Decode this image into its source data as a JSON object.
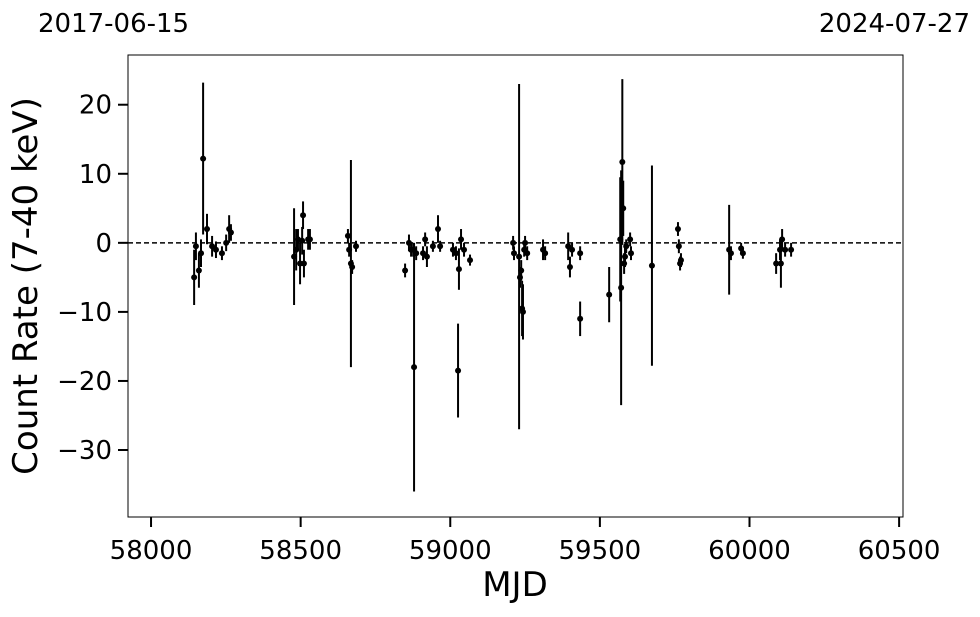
{
  "chart_data": {
    "type": "errorbar",
    "top_left_label": "2017-06-15",
    "top_right_label": "2024-07-27",
    "x_label": "MJD",
    "y_label": "Count Rate (7-40 keV)",
    "xlim": [
      57923,
      60513
    ],
    "ylim": [
      -39.7,
      27.2
    ],
    "xticks": [
      58000,
      58500,
      59000,
      59500,
      60000,
      60500
    ],
    "yticks": [
      {
        "value": -30,
        "label": "−30"
      },
      {
        "value": -20,
        "label": "−20"
      },
      {
        "value": -10,
        "label": "−10"
      },
      0,
      10,
      20
    ],
    "hline": 0,
    "series": [
      {
        "color": "#000000",
        "x": [
          58144,
          58150,
          58160,
          58167,
          58174,
          58187,
          58204,
          58217,
          58237,
          58251,
          58261,
          58267,
          58478,
          58485,
          58491,
          58498,
          58505,
          58508,
          58511,
          58525,
          58531,
          58658,
          58662,
          58668,
          58672,
          58685,
          58849,
          58862,
          58869,
          58876,
          58879,
          58886,
          58909,
          58916,
          58922,
          58942,
          58959,
          58966,
          59009,
          59019,
          59026,
          59029,
          59036,
          59046,
          59066,
          59210,
          59213,
          59230,
          59233,
          59237,
          59240,
          59243,
          59247,
          59250,
          59257,
          59310,
          59317,
          59394,
          59400,
          59407,
          59434,
          59434,
          59531,
          59568,
          59571,
          59575,
          59578,
          59581,
          59584,
          59588,
          59601,
          59604,
          59674,
          59761,
          59764,
          59768,
          59771,
          59932,
          59938,
          59972,
          59978,
          60089,
          60102,
          60105,
          60109,
          60119,
          60139
        ],
        "values": [
          -5,
          -0.5,
          -4,
          -1.5,
          12.2,
          2,
          -0.5,
          -1,
          -1.5,
          0,
          2,
          1.5,
          -2,
          -1,
          0.5,
          -3,
          0.3,
          4,
          -3,
          0.5,
          0.5,
          1,
          -1,
          -3,
          -3.5,
          -0.5,
          -4,
          0,
          -1,
          -1,
          -18,
          -1.5,
          -1.5,
          0.5,
          -2,
          -0.5,
          2,
          -0.5,
          -1,
          -1.5,
          -18.5,
          -3.8,
          0.5,
          -1,
          -2.5,
          0,
          -1.5,
          -2,
          -5,
          -4,
          -9.5,
          -10,
          -1,
          0,
          -1.5,
          -1,
          -1.5,
          -0.5,
          -3.5,
          -1,
          -11,
          -1.5,
          -7.5,
          0.5,
          -6.5,
          11.7,
          5,
          -3,
          -2,
          -0.5,
          0.5,
          -1.5,
          -3.3,
          2,
          -0.5,
          -3,
          -2.5,
          -1,
          -1.5,
          -0.8,
          -1.5,
          -3,
          -1,
          -3,
          0.5,
          -1,
          -1
        ],
        "errors": [
          4,
          2,
          2.5,
          2,
          11,
          2.2,
          1.5,
          1.2,
          1,
          1.2,
          2,
          1.2,
          7,
          3,
          1.5,
          3,
          2,
          2,
          2,
          1.5,
          1.5,
          1,
          1,
          15,
          1,
          0.8,
          1,
          1.2,
          1,
          1,
          18,
          1,
          1,
          1,
          1.5,
          0.8,
          2,
          0.8,
          1,
          1,
          6.8,
          3,
          1.5,
          1,
          0.8,
          1,
          1,
          25,
          1.5,
          1.5,
          4,
          4,
          1,
          1,
          1,
          1.5,
          1,
          2,
          1.5,
          1,
          2.5,
          1,
          4,
          9,
          17,
          12,
          4,
          1.5,
          1.5,
          1,
          1,
          1,
          14.5,
          1,
          1,
          1,
          1,
          6.5,
          1,
          0.8,
          0.8,
          1.5,
          1.5,
          3.5,
          1.5,
          1,
          1
        ]
      }
    ]
  }
}
